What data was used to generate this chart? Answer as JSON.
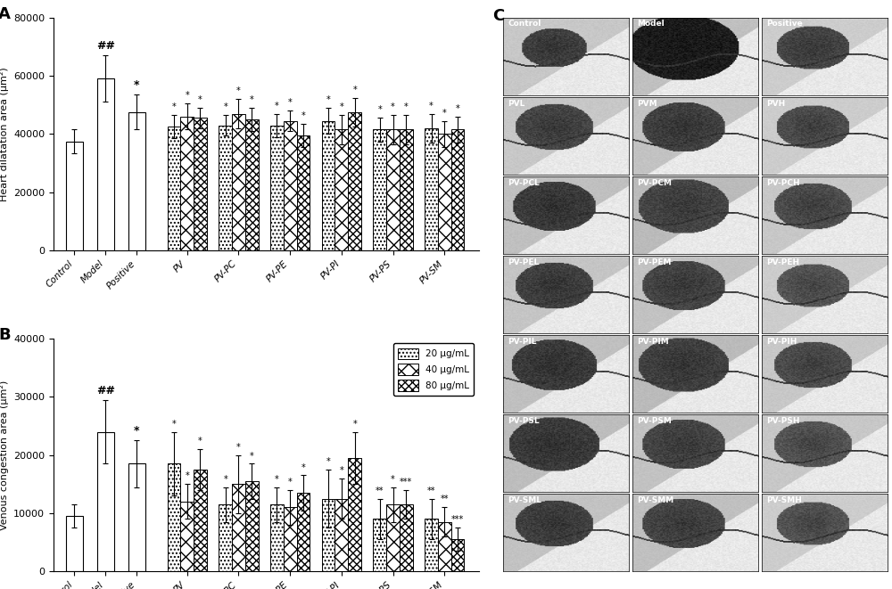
{
  "chartA": {
    "title": "A",
    "ylabel": "Heart dilatation area (μm²)",
    "ylim": [
      0,
      80000
    ],
    "yticks": [
      0,
      20000,
      40000,
      60000,
      80000
    ],
    "categories": [
      "Control",
      "Model",
      "Positive",
      "PV",
      "PV-PC",
      "PV-PE",
      "PV-PI",
      "PV-PS",
      "PV-SM"
    ],
    "single_bars": {
      "Control": {
        "mean": 37500,
        "err": 4000
      },
      "Model": {
        "mean": 59000,
        "err": 8000
      },
      "Positive": {
        "mean": 47500,
        "err": 6000
      }
    },
    "group_bars": {
      "PV": [
        {
          "mean": 42500,
          "err": 4000
        },
        {
          "mean": 46000,
          "err": 4500
        },
        {
          "mean": 45500,
          "err": 3500
        }
      ],
      "PV-PC": [
        {
          "mean": 43000,
          "err": 3500
        },
        {
          "mean": 47000,
          "err": 5000
        },
        {
          "mean": 45000,
          "err": 4000
        }
      ],
      "PV-PE": [
        {
          "mean": 43000,
          "err": 4000
        },
        {
          "mean": 44500,
          "err": 3500
        },
        {
          "mean": 39500,
          "err": 4000
        }
      ],
      "PV-PI": [
        {
          "mean": 44500,
          "err": 4500
        },
        {
          "mean": 41500,
          "err": 5000
        },
        {
          "mean": 47500,
          "err": 5000
        }
      ],
      "PV-PS": [
        {
          "mean": 41500,
          "err": 4000
        },
        {
          "mean": 41500,
          "err": 5000
        },
        {
          "mean": 41500,
          "err": 5000
        }
      ],
      "PV-SM": [
        {
          "mean": 42000,
          "err": 5000
        },
        {
          "mean": 40000,
          "err": 4500
        },
        {
          "mean": 41500,
          "err": 4500
        }
      ]
    },
    "annotations_single": {
      "Model": "##",
      "Positive": "*",
      "Control": ""
    },
    "annotations_group": {
      "PV": [
        "*",
        "*",
        "*"
      ],
      "PV-PC": [
        "*",
        "*",
        "*"
      ],
      "PV-PE": [
        "*",
        "*",
        "*"
      ],
      "PV-PI": [
        "*",
        "*",
        "*"
      ],
      "PV-PS": [
        "*",
        "*",
        "*"
      ],
      "PV-SM": [
        "*",
        "*",
        "*"
      ]
    }
  },
  "chartB": {
    "title": "B",
    "ylabel": "Venous congestion area (μm²)",
    "ylim": [
      0,
      40000
    ],
    "yticks": [
      0,
      10000,
      20000,
      30000,
      40000
    ],
    "categories": [
      "Control",
      "Model",
      "Positive",
      "PV",
      "PV-PC",
      "PV-PE",
      "PV-PI",
      "PV-PS",
      "PV-SM"
    ],
    "single_bars": {
      "Control": {
        "mean": 9500,
        "err": 2000
      },
      "Model": {
        "mean": 24000,
        "err": 5500
      },
      "Positive": {
        "mean": 18500,
        "err": 4000
      }
    },
    "group_bars": {
      "PV": [
        {
          "mean": 18500,
          "err": 5500
        },
        {
          "mean": 12000,
          "err": 3000
        },
        {
          "mean": 17500,
          "err": 3500
        }
      ],
      "PV-PC": [
        {
          "mean": 11500,
          "err": 3000
        },
        {
          "mean": 15000,
          "err": 5000
        },
        {
          "mean": 15500,
          "err": 3000
        }
      ],
      "PV-PE": [
        {
          "mean": 11500,
          "err": 3000
        },
        {
          "mean": 11000,
          "err": 3000
        },
        {
          "mean": 13500,
          "err": 3000
        }
      ],
      "PV-PI": [
        {
          "mean": 12500,
          "err": 5000
        },
        {
          "mean": 12500,
          "err": 3500
        },
        {
          "mean": 19500,
          "err": 4500
        }
      ],
      "PV-PS": [
        {
          "mean": 9000,
          "err": 3500
        },
        {
          "mean": 11500,
          "err": 3000
        },
        {
          "mean": 11500,
          "err": 2500
        }
      ],
      "PV-SM": [
        {
          "mean": 9000,
          "err": 3500
        },
        {
          "mean": 8500,
          "err": 2500
        },
        {
          "mean": 5500,
          "err": 2000
        }
      ]
    },
    "annotations_single": {
      "Model": "##",
      "Positive": "*",
      "Control": ""
    },
    "annotations_group": {
      "PV": [
        "*",
        "*",
        "*"
      ],
      "PV-PC": [
        "*",
        "*",
        "*"
      ],
      "PV-PE": [
        "*",
        "*",
        "*"
      ],
      "PV-PI": [
        "*",
        "*",
        "*"
      ],
      "PV-PS": [
        "**",
        "*",
        "***"
      ],
      "PV-SM": [
        "**",
        "**",
        "***"
      ]
    }
  },
  "legend_labels": [
    "20 μg/mL",
    "40 μg/mL",
    "80 μg/mL"
  ],
  "hatch_patterns": [
    "....",
    "XX",
    "xxxx"
  ],
  "panel_C_labels": [
    [
      "Control",
      "Model",
      "Positive"
    ],
    [
      "PVL",
      "PVM",
      "PVH"
    ],
    [
      "PV-PCL",
      "PV-PCM",
      "PV-PCH"
    ],
    [
      "PV-PEL",
      "PV-PEM",
      "PV-PEH"
    ],
    [
      "PV-PIL",
      "PV-PIM",
      "PV-PIH"
    ],
    [
      "PV-PSL",
      "PV-PSM",
      "PV-PSH"
    ],
    [
      "PV-SML",
      "PV-SMM",
      "PV-SMH"
    ]
  ]
}
